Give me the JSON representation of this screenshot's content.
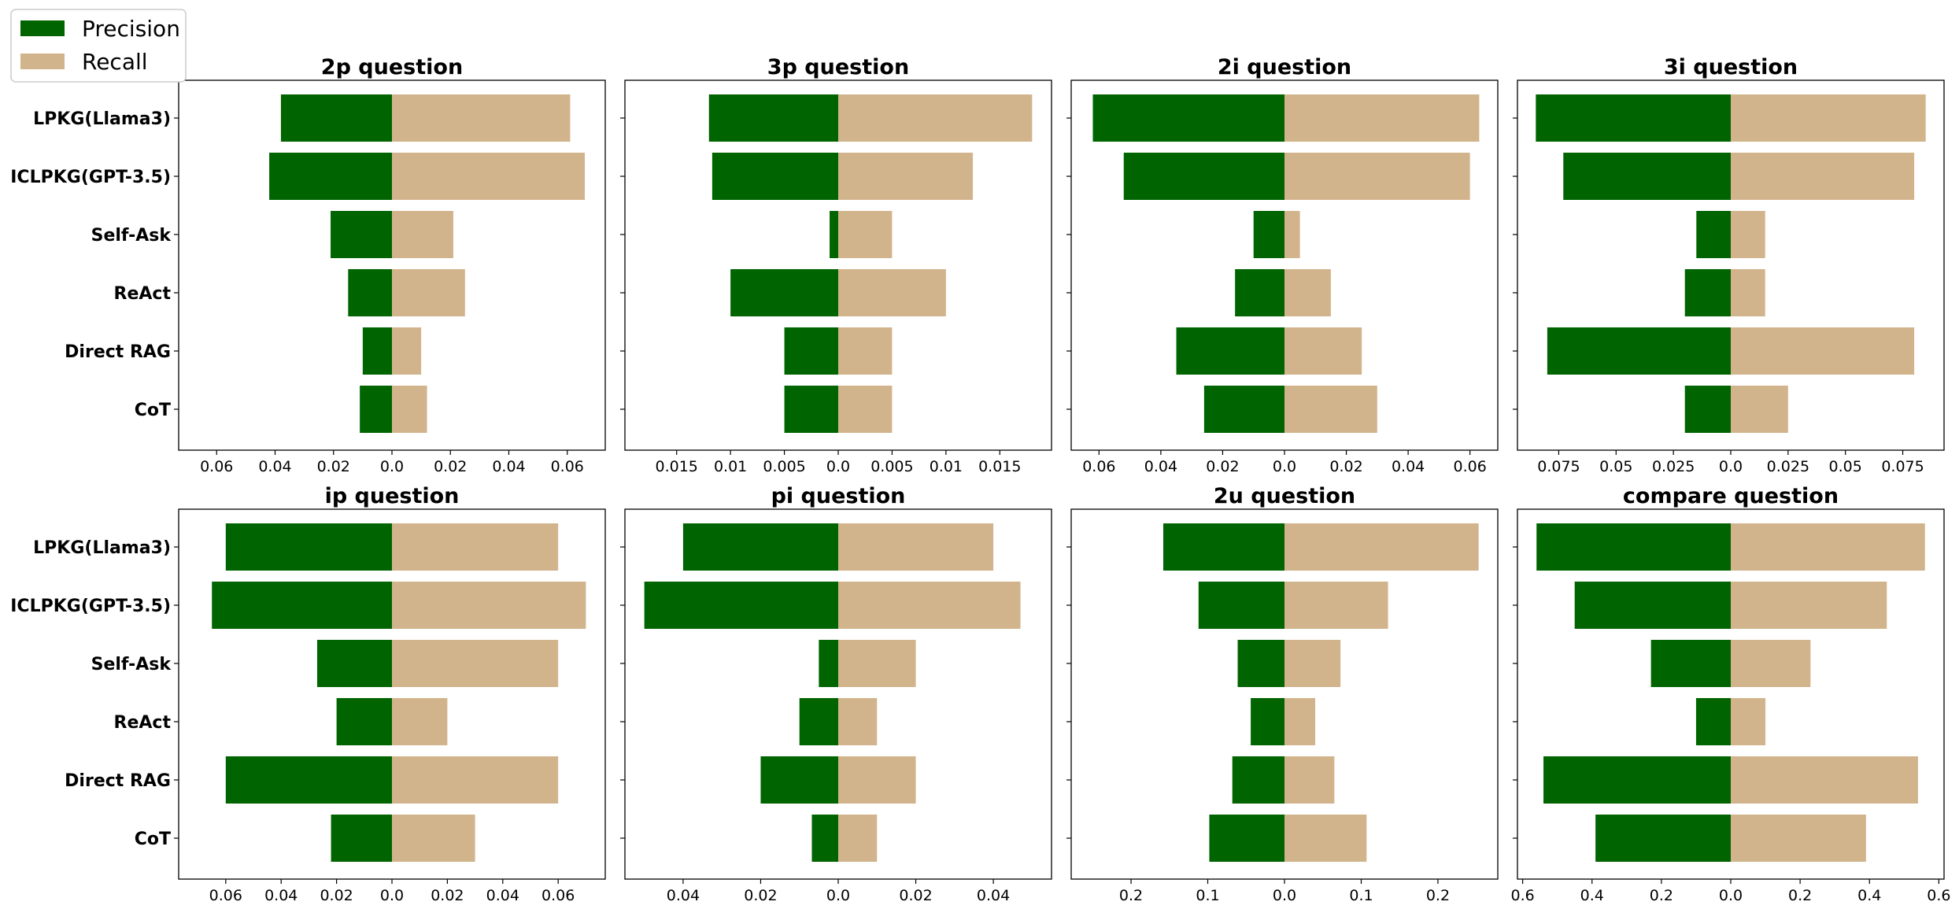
{
  "colors": {
    "precision": "#006400",
    "recall": "#d2b48c"
  },
  "legend": {
    "items": [
      "Precision",
      "Recall"
    ],
    "placement": "top-left"
  },
  "chart_data": [
    {
      "type": "bar",
      "orientation": "horizontal-diverging",
      "title": "2p question",
      "categories": [
        "LPKG(Llama3)",
        "ICLPKG(GPT-3.5)",
        "Self-Ask",
        "ReAct",
        "Direct RAG",
        "CoT"
      ],
      "series": [
        {
          "name": "Precision",
          "values": [
            0.038,
            0.042,
            0.021,
            0.015,
            0.01,
            0.011
          ]
        },
        {
          "name": "Recall",
          "values": [
            0.061,
            0.066,
            0.021,
            0.025,
            0.01,
            0.012
          ]
        }
      ],
      "xlim": [
        -0.073,
        0.073
      ],
      "xticks": [
        -0.06,
        -0.04,
        -0.02,
        0,
        0.02,
        0.04,
        0.06
      ],
      "xticklabels": [
        "0.06",
        "0.04",
        "0.02",
        "0.0",
        "0.02",
        "0.04",
        "0.06"
      ]
    },
    {
      "type": "bar",
      "orientation": "horizontal-diverging",
      "title": "3p question",
      "categories": [
        "LPKG(Llama3)",
        "ICLPKG(GPT-3.5)",
        "Self-Ask",
        "ReAct",
        "Direct RAG",
        "CoT"
      ],
      "series": [
        {
          "name": "Precision",
          "values": [
            0.012,
            0.0117,
            0.0008,
            0.01,
            0.005,
            0.005
          ]
        },
        {
          "name": "Recall",
          "values": [
            0.018,
            0.0125,
            0.005,
            0.01,
            0.005,
            0.005
          ]
        }
      ],
      "xlim": [
        -0.0198,
        0.0198
      ],
      "xticks": [
        -0.015,
        -0.01,
        -0.005,
        0,
        0.005,
        0.01,
        0.015
      ],
      "xticklabels": [
        "0.015",
        "0.01",
        "0.005",
        "0.0",
        "0.005",
        "0.01",
        "0.015"
      ]
    },
    {
      "type": "bar",
      "orientation": "horizontal-diverging",
      "title": "2i question",
      "categories": [
        "LPKG(Llama3)",
        "ICLPKG(GPT-3.5)",
        "Self-Ask",
        "ReAct",
        "Direct RAG",
        "CoT"
      ],
      "series": [
        {
          "name": "Precision",
          "values": [
            0.062,
            0.052,
            0.01,
            0.016,
            0.035,
            0.026
          ]
        },
        {
          "name": "Recall",
          "values": [
            0.063,
            0.06,
            0.005,
            0.015,
            0.025,
            0.03
          ]
        }
      ],
      "xlim": [
        -0.069,
        0.069
      ],
      "xticks": [
        -0.06,
        -0.04,
        -0.02,
        0,
        0.02,
        0.04,
        0.06
      ],
      "xticklabels": [
        "0.06",
        "0.04",
        "0.02",
        "0.0",
        "0.02",
        "0.04",
        "0.06"
      ]
    },
    {
      "type": "bar",
      "orientation": "horizontal-diverging",
      "title": "3i question",
      "categories": [
        "LPKG(Llama3)",
        "ICLPKG(GPT-3.5)",
        "Self-Ask",
        "ReAct",
        "Direct RAG",
        "CoT"
      ],
      "series": [
        {
          "name": "Precision",
          "values": [
            0.085,
            0.073,
            0.015,
            0.02,
            0.08,
            0.02
          ]
        },
        {
          "name": "Recall",
          "values": [
            0.085,
            0.08,
            0.015,
            0.015,
            0.08,
            0.025
          ]
        }
      ],
      "xlim": [
        -0.093,
        0.093
      ],
      "xticks": [
        -0.075,
        -0.05,
        -0.025,
        0,
        0.025,
        0.05,
        0.075
      ],
      "xticklabels": [
        "0.075",
        "0.05",
        "0.025",
        "0.0",
        "0.025",
        "0.05",
        "0.075"
      ]
    },
    {
      "type": "bar",
      "orientation": "horizontal-diverging",
      "title": "ip question",
      "categories": [
        "LPKG(Llama3)",
        "ICLPKG(GPT-3.5)",
        "Self-Ask",
        "ReAct",
        "Direct RAG",
        "CoT"
      ],
      "series": [
        {
          "name": "Precision",
          "values": [
            0.06,
            0.065,
            0.027,
            0.02,
            0.06,
            0.022
          ]
        },
        {
          "name": "Recall",
          "values": [
            0.06,
            0.07,
            0.06,
            0.02,
            0.06,
            0.03
          ]
        }
      ],
      "xlim": [
        -0.077,
        0.077
      ],
      "xticks": [
        -0.06,
        -0.04,
        -0.02,
        0,
        0.02,
        0.04,
        0.06
      ],
      "xticklabels": [
        "0.06",
        "0.04",
        "0.02",
        "0.0",
        "0.02",
        "0.04",
        "0.06"
      ]
    },
    {
      "type": "bar",
      "orientation": "horizontal-diverging",
      "title": "pi question",
      "categories": [
        "LPKG(Llama3)",
        "ICLPKG(GPT-3.5)",
        "Self-Ask",
        "ReAct",
        "Direct RAG",
        "CoT"
      ],
      "series": [
        {
          "name": "Precision",
          "values": [
            0.04,
            0.05,
            0.005,
            0.01,
            0.02,
            0.0068
          ]
        },
        {
          "name": "Recall",
          "values": [
            0.04,
            0.047,
            0.02,
            0.01,
            0.02,
            0.01
          ]
        }
      ],
      "xlim": [
        -0.055,
        0.055
      ],
      "xticks": [
        -0.04,
        -0.02,
        0,
        0.02,
        0.04
      ],
      "xticklabels": [
        "0.04",
        "0.02",
        "0.0",
        "0.02",
        "0.04"
      ]
    },
    {
      "type": "bar",
      "orientation": "horizontal-diverging",
      "title": "2u question",
      "categories": [
        "LPKG(Llama3)",
        "ICLPKG(GPT-3.5)",
        "Self-Ask",
        "ReAct",
        "Direct RAG",
        "CoT"
      ],
      "series": [
        {
          "name": "Precision",
          "values": [
            0.158,
            0.112,
            0.061,
            0.044,
            0.068,
            0.098
          ]
        },
        {
          "name": "Recall",
          "values": [
            0.253,
            0.135,
            0.073,
            0.04,
            0.065,
            0.107
          ]
        }
      ],
      "xlim": [
        -0.278,
        0.278
      ],
      "xticks": [
        -0.2,
        -0.1,
        0,
        0.1,
        0.2
      ],
      "xticklabels": [
        "0.2",
        "0.1",
        "0.0",
        "0.1",
        "0.2"
      ]
    },
    {
      "type": "bar",
      "orientation": "horizontal-diverging",
      "title": "compare question",
      "categories": [
        "LPKG(Llama3)",
        "ICLPKG(GPT-3.5)",
        "Self-Ask",
        "ReAct",
        "Direct RAG",
        "CoT"
      ],
      "series": [
        {
          "name": "Precision",
          "values": [
            0.56,
            0.45,
            0.23,
            0.1,
            0.54,
            0.39
          ]
        },
        {
          "name": "Recall",
          "values": [
            0.56,
            0.45,
            0.23,
            0.1,
            0.54,
            0.39
          ]
        }
      ],
      "xlim": [
        -0.615,
        0.615
      ],
      "xticks": [
        -0.6,
        -0.4,
        -0.2,
        0,
        0.2,
        0.4,
        0.6
      ],
      "xticklabels": [
        "0.6",
        "0.4",
        "0.2",
        "0.0",
        "0.2",
        "0.4",
        "0.6"
      ]
    }
  ]
}
